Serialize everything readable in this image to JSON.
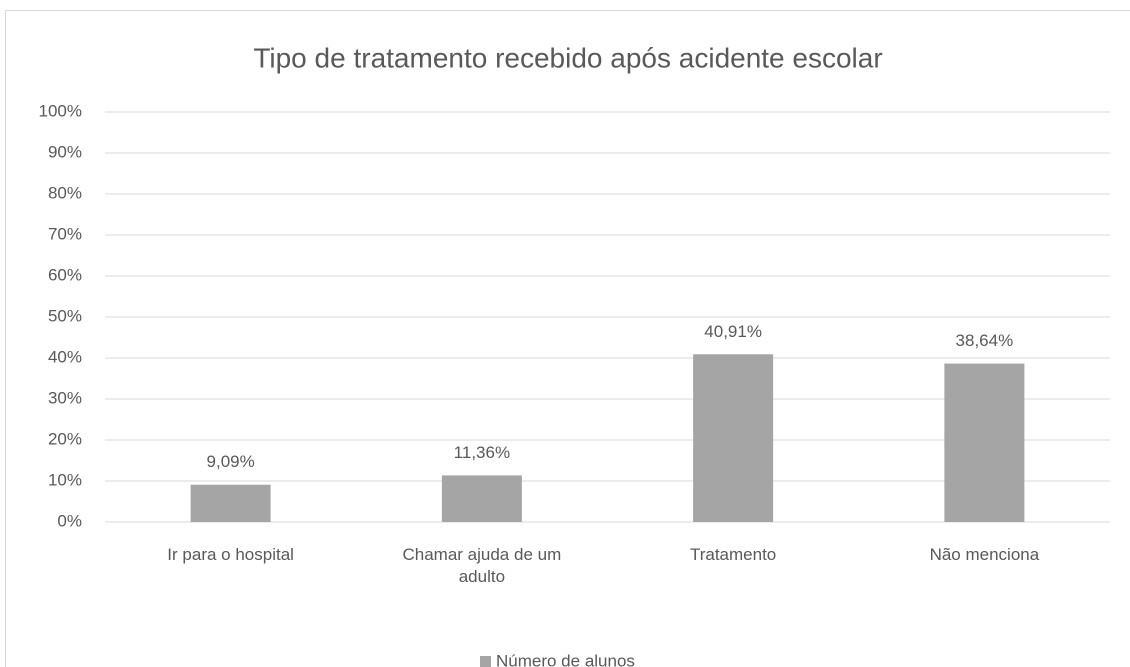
{
  "chart_data": {
    "type": "bar",
    "title": "Tipo de tratamento recebido após acidente escolar",
    "categories": [
      "Ir para o hospital",
      "Chamar ajuda de um adulto",
      "Tratamento",
      "Não menciona"
    ],
    "series": [
      {
        "name": "Número de alunos",
        "color": "#a5a5a5",
        "values": [
          9.09,
          11.36,
          40.91,
          38.64
        ],
        "value_labels": [
          "9,09%",
          "11,36%",
          "40,91%",
          "38,64%"
        ]
      }
    ],
    "ylim": [
      0,
      100
    ],
    "yticks": [
      {
        "value": 0,
        "label": "0%"
      },
      {
        "value": 10,
        "label": "10%"
      },
      {
        "value": 20,
        "label": "20%"
      },
      {
        "value": 30,
        "label": "30%"
      },
      {
        "value": 40,
        "label": "40%"
      },
      {
        "value": 50,
        "label": "50%"
      },
      {
        "value": 60,
        "label": "60%"
      },
      {
        "value": 70,
        "label": "70%"
      },
      {
        "value": 80,
        "label": "80%"
      },
      {
        "value": 90,
        "label": "90%"
      },
      {
        "value": 100,
        "label": "100%"
      }
    ],
    "grid": true,
    "legend": "bottom"
  }
}
